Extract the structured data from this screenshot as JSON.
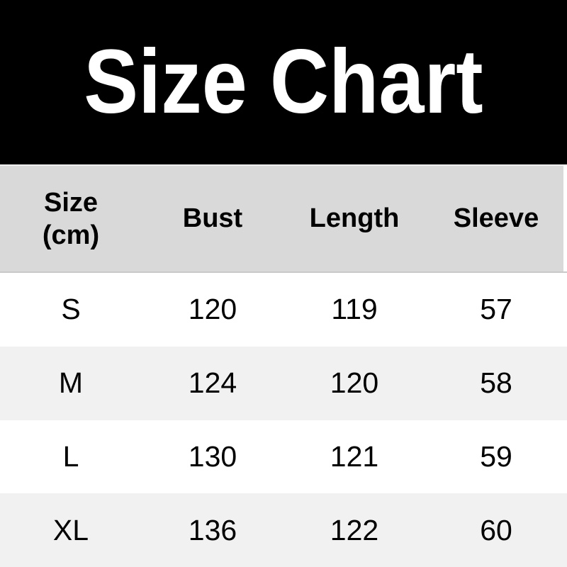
{
  "banner": {
    "title": "Size Chart"
  },
  "table": {
    "header": {
      "size": "Size",
      "size_unit": "(cm)",
      "bust": "Bust",
      "length": "Length",
      "sleeve": "Sleeve"
    },
    "rows": [
      {
        "size": "S",
        "bust": "120",
        "length": "119",
        "sleeve": "57"
      },
      {
        "size": "M",
        "bust": "124",
        "length": "120",
        "sleeve": "58"
      },
      {
        "size": "L",
        "bust": "130",
        "length": "121",
        "sleeve": "59"
      },
      {
        "size": "XL",
        "bust": "136",
        "length": "122",
        "sleeve": "60"
      }
    ]
  },
  "colors": {
    "banner_bg": "#000000",
    "banner_text": "#ffffff",
    "header_row_bg": "#d9d9d9",
    "row_bg": "#ffffff",
    "row_alt_bg": "#f1f1f1",
    "text": "#000000"
  }
}
